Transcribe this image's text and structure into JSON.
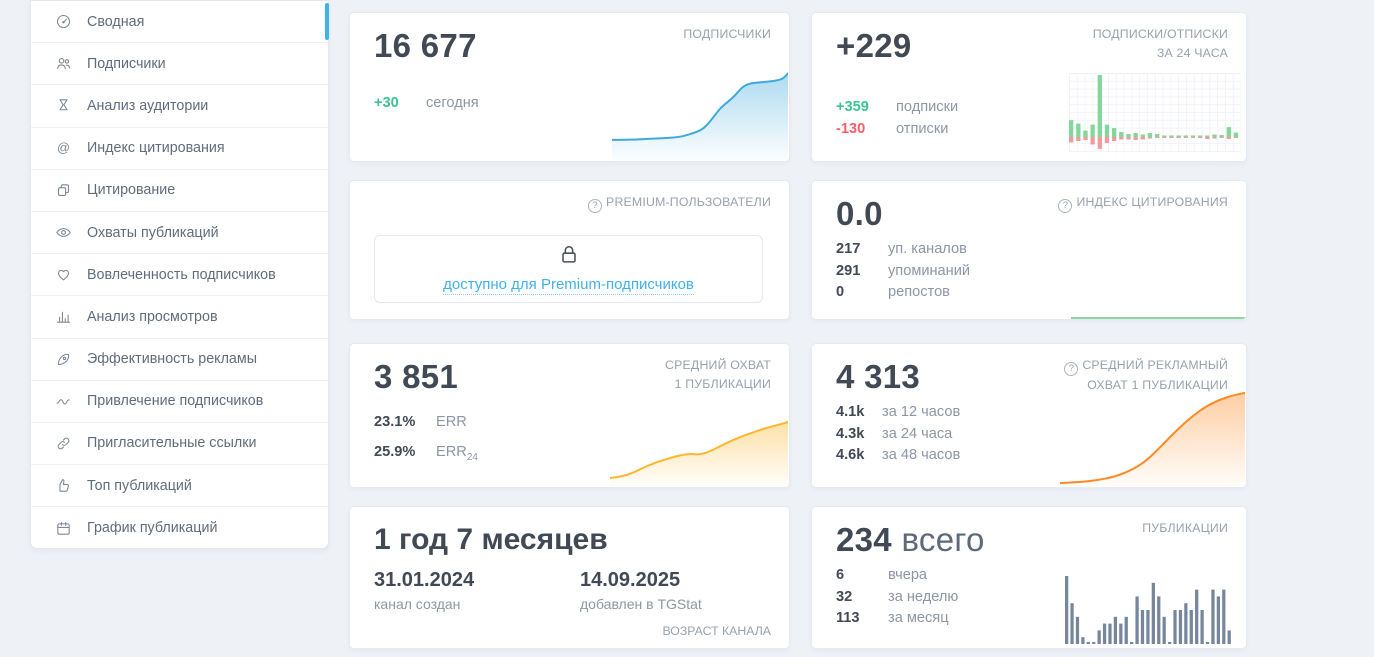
{
  "theme": {
    "accent_blue": "#3cb4e8",
    "green": "#3bc492",
    "red": "#f4606c",
    "line_blue": "#3fa9dc",
    "bar_green": "#82d79b",
    "bar_red": "#f59a9a",
    "yellow": "#fdb72c",
    "orange": "#fd8a25",
    "citation_green": "#8fd3a1",
    "posts_bar": "#76879c",
    "link_blue": "#41b2e8"
  },
  "sidebar": {
    "items": [
      {
        "label": "Сводная",
        "active": true
      },
      {
        "label": "Подписчики"
      },
      {
        "label": "Анализ аудитории"
      },
      {
        "label": "Индекс цитирования"
      },
      {
        "label": "Цитирование"
      },
      {
        "label": "Охваты публикаций"
      },
      {
        "label": "Вовлеченность подписчиков"
      },
      {
        "label": "Анализ просмотров"
      },
      {
        "label": "Эффективность рекламы"
      },
      {
        "label": "Привлечение подписчиков"
      },
      {
        "label": "Пригласительные ссылки"
      },
      {
        "label": "Топ публикаций"
      },
      {
        "label": "График публикаций"
      }
    ]
  },
  "cards": {
    "subscribers": {
      "title": "ПОДПИСЧИКИ",
      "value": "16 677",
      "delta": "+30",
      "delta_label": "сегодня"
    },
    "subs24": {
      "title_line1": "ПОДПИСКИ/ОТПИСКИ",
      "title_line2": "ЗА 24 ЧАСА",
      "value": "+229",
      "rows": [
        {
          "value": "+359",
          "label": "подписки"
        },
        {
          "value": "-130",
          "label": "отписки"
        }
      ]
    },
    "premium": {
      "help": "?",
      "title": "PREMIUM-ПОЛЬЗОВАТЕЛИ",
      "link_label": "доступно для Premium-подписчиков"
    },
    "citation": {
      "help": "?",
      "title": "ИНДЕКС ЦИТИРОВАНИЯ",
      "value": "0.0",
      "rows": [
        {
          "value": "217",
          "label": "уп. каналов"
        },
        {
          "value": "291",
          "label": "упоминаний"
        },
        {
          "value": "0",
          "label": "репостов"
        }
      ]
    },
    "avg_reach": {
      "title_line1": "СРЕДНИЙ ОХВАТ",
      "title_line2": "1 ПУБЛИКАЦИИ",
      "value": "3 851",
      "rows": [
        {
          "value": "23.1%",
          "label": "ERR",
          "sub": ""
        },
        {
          "value": "25.9%",
          "label": "ERR",
          "sub": "24"
        }
      ]
    },
    "ad_reach": {
      "help": "?",
      "title_line1": "СРЕДНИЙ РЕКЛАМНЫЙ",
      "title_line2": "ОХВАТ 1 ПУБЛИКАЦИИ",
      "value": "4 313",
      "rows": [
        {
          "value": "4.1k",
          "label": "за 12 часов"
        },
        {
          "value": "4.3k",
          "label": "за 24 часа"
        },
        {
          "value": "4.6k",
          "label": "за 48 часов"
        }
      ]
    },
    "age": {
      "value": "1 год 7 месяцев",
      "footer": "ВОЗРАСТ КАНАЛА",
      "cols": [
        {
          "value": "31.01.2024",
          "label": "канал создан"
        },
        {
          "value": "14.09.2025",
          "label": "добавлен в TGStat"
        }
      ]
    },
    "posts": {
      "title": "ПУБЛИКАЦИИ",
      "value": "234",
      "suffix": "всего",
      "rows": [
        {
          "value": "6",
          "label": "вчера"
        },
        {
          "value": "32",
          "label": "за неделю"
        },
        {
          "value": "113",
          "label": "за месяц"
        }
      ]
    }
  },
  "chart_data": [
    {
      "id": "subscribers-spark",
      "type": "area",
      "title": "ПОДПИСЧИКИ",
      "color": "#3fa9dc",
      "ylim": [
        0,
        100
      ],
      "points": [
        [
          0,
          21
        ],
        [
          10,
          21
        ],
        [
          20,
          22
        ],
        [
          30,
          23
        ],
        [
          38,
          24
        ],
        [
          44,
          27
        ],
        [
          50,
          31
        ],
        [
          54,
          37
        ],
        [
          58,
          47
        ],
        [
          62,
          57
        ],
        [
          66,
          63
        ],
        [
          70,
          70
        ],
        [
          74,
          79
        ],
        [
          78,
          83
        ],
        [
          83,
          84
        ],
        [
          88,
          85
        ],
        [
          93,
          86
        ],
        [
          97,
          88
        ],
        [
          100,
          94
        ]
      ]
    },
    {
      "id": "subs24-bars",
      "type": "bar",
      "title": "ПОДПИСКИ/ОТПИСКИ ЗА 24 ЧАСА",
      "grid": true,
      "up_color": "#82d79b",
      "down_color": "#f59a9a",
      "series": [
        {
          "name": "подписки",
          "values": [
            34,
            27,
            13,
            25,
            125,
            25,
            18,
            10,
            6,
            8,
            5,
            8,
            6,
            3,
            3,
            1,
            1,
            1,
            1,
            1,
            5,
            4,
            20,
            9
          ]
        },
        {
          "name": "отписки",
          "values": [
            -11,
            -8,
            -6,
            -15,
            -24,
            -12,
            -8,
            -5,
            -5,
            -6,
            -5,
            -3,
            -2,
            -1,
            -1,
            -1,
            0,
            -1,
            -1,
            -4,
            -3,
            -2,
            -4,
            -2
          ]
        }
      ]
    },
    {
      "id": "err-spark",
      "type": "area",
      "title": "СРЕДНИЙ ОХВАТ 1 ПУБЛИКАЦИИ",
      "color": "#fdb72c",
      "ylim": [
        0,
        100
      ],
      "points": [
        [
          0,
          9
        ],
        [
          6,
          11
        ],
        [
          12,
          15
        ],
        [
          18,
          22
        ],
        [
          24,
          28
        ],
        [
          30,
          33
        ],
        [
          36,
          37
        ],
        [
          41,
          40
        ],
        [
          46,
          41
        ],
        [
          50,
          40
        ],
        [
          55,
          43
        ],
        [
          61,
          50
        ],
        [
          67,
          57
        ],
        [
          73,
          63
        ],
        [
          79,
          68
        ],
        [
          85,
          73
        ],
        [
          91,
          77
        ],
        [
          96,
          80
        ],
        [
          100,
          83
        ]
      ]
    },
    {
      "id": "ad-spark",
      "type": "area",
      "title": "СРЕДНИЙ РЕКЛАМНЫЙ ОХВАТ 1 ПУБЛИКАЦИИ",
      "color": "#fd8a25",
      "ylim": [
        0,
        100
      ],
      "points": [
        [
          0,
          2
        ],
        [
          10,
          3
        ],
        [
          20,
          5
        ],
        [
          30,
          9
        ],
        [
          40,
          17
        ],
        [
          48,
          28
        ],
        [
          56,
          44
        ],
        [
          64,
          60
        ],
        [
          72,
          74
        ],
        [
          80,
          85
        ],
        [
          88,
          92
        ],
        [
          95,
          96
        ],
        [
          100,
          98
        ]
      ]
    },
    {
      "id": "posts-bars",
      "type": "bar",
      "title": "ПУБЛИКАЦИИ",
      "color": "#76879c",
      "values": [
        10,
        6,
        4,
        1,
        0.3,
        0.3,
        2,
        3,
        3,
        4,
        3,
        4,
        0.3,
        7,
        5,
        5,
        9,
        7,
        4,
        0.3,
        5,
        5,
        6,
        5,
        8,
        5,
        0.3,
        8,
        7,
        8,
        2
      ]
    }
  ]
}
